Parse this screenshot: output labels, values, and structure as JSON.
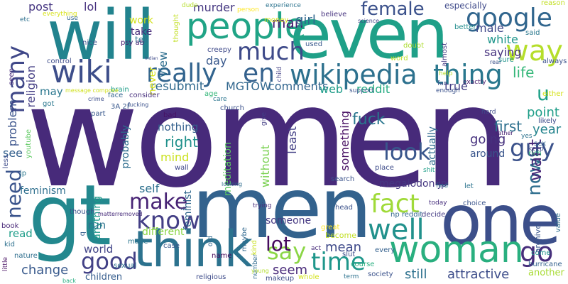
{
  "words": [
    {
      "text": "women",
      "color": "#472a7a"
    },
    {
      "text": "men",
      "color": "#33628d"
    },
    {
      "text": "gt",
      "color": "#23888e"
    },
    {
      "text": "will",
      "color": "#22838e"
    },
    {
      "text": "even",
      "color": "#1fa088"
    },
    {
      "text": "one",
      "color": "#3c4f8a"
    },
    {
      "text": "think",
      "color": "#2c728e"
    },
    {
      "text": "woman",
      "color": "#29af7f"
    },
    {
      "text": "wikipedia",
      "color": "#2d718e"
    },
    {
      "text": "people",
      "color": "#20a486"
    },
    {
      "text": "wiki",
      "color": "#3d4e8a"
    },
    {
      "text": "google",
      "color": "#31668e"
    },
    {
      "text": "really",
      "color": "#32648e"
    },
    {
      "text": "thing",
      "color": "#2a788e"
    },
    {
      "text": "en",
      "color": "#34618d"
    },
    {
      "text": "much",
      "color": "#3e4a89"
    },
    {
      "text": "way",
      "color": "#b5de2b"
    },
    {
      "text": "many",
      "color": "#3f4788"
    },
    {
      "text": "fact",
      "color": "#a0da39"
    },
    {
      "text": "well",
      "color": "#21918c"
    },
    {
      "text": "time",
      "color": "#1f978b"
    },
    {
      "text": "go",
      "color": "#472d7b"
    },
    {
      "text": "know",
      "color": "#433e85"
    },
    {
      "text": "make",
      "color": "#482475"
    },
    {
      "text": "guy",
      "color": "#3b528b"
    },
    {
      "text": "look",
      "color": "#39568c"
    },
    {
      "text": "say",
      "color": "#8bd646"
    },
    {
      "text": "need",
      "color": "#3a548c"
    },
    {
      "text": "good",
      "color": "#424186"
    },
    {
      "text": "female",
      "color": "#3b518b"
    },
    {
      "text": "now",
      "color": "#2e6e8e"
    },
    {
      "text": "want",
      "color": "#482878"
    },
    {
      "text": "u",
      "color": "#1fa188"
    },
    {
      "text": "point",
      "color": "#1f9e89"
    },
    {
      "text": "man",
      "color": "#481f70"
    },
    {
      "text": "girl",
      "color": "#31688e"
    },
    {
      "text": "murder",
      "color": "#453781"
    },
    {
      "text": "resubmit",
      "color": "#30698e"
    },
    {
      "text": "MGTOW",
      "color": "#31678e"
    },
    {
      "text": "comments",
      "color": "#32658e"
    },
    {
      "text": "life",
      "color": "#35b779"
    },
    {
      "text": "lot",
      "color": "#460b5e"
    },
    {
      "text": "fuck",
      "color": "#2a768e"
    },
    {
      "text": "first",
      "color": "#2d708e"
    },
    {
      "text": "year",
      "color": "#25848e"
    },
    {
      "text": "right",
      "color": "#21918c"
    },
    {
      "text": "going",
      "color": "#46317e"
    },
    {
      "text": "still",
      "color": "#2d718e"
    },
    {
      "text": "attractive",
      "color": "#3d4d8a"
    },
    {
      "text": "seem",
      "color": "#482979"
    },
    {
      "text": "mean",
      "color": "#3e4989"
    },
    {
      "text": "change",
      "color": "#38598c"
    },
    {
      "text": "children",
      "color": "#365d8d"
    },
    {
      "text": "post",
      "color": "#453581"
    },
    {
      "text": "lol",
      "color": "#46307e"
    },
    {
      "text": "day",
      "color": "#38588c"
    },
    {
      "text": "nothing",
      "color": "#34618d"
    },
    {
      "text": "true",
      "color": "#433e85"
    },
    {
      "text": "web",
      "color": "#1e9c89"
    },
    {
      "text": "reddit",
      "color": "#25ab82"
    },
    {
      "text": "view",
      "color": "#2e6e8e"
    },
    {
      "text": "never",
      "color": "#d8e219"
    },
    {
      "text": "work",
      "color": "#d2e21b"
    },
    {
      "text": "take",
      "color": "#472c7a"
    },
    {
      "text": "tell",
      "color": "#2c738e"
    },
    {
      "text": "white",
      "color": "#1f968b"
    },
    {
      "text": "saying",
      "color": "#46327e"
    },
    {
      "text": "male",
      "color": "#3f4889"
    },
    {
      "text": "religion",
      "color": "#433d84"
    },
    {
      "text": "problem",
      "color": "#3a538b"
    },
    {
      "text": "probably",
      "color": "#2e6d8e"
    },
    {
      "text": "anything",
      "color": "#1e9b8a"
    },
    {
      "text": "self",
      "color": "#2d708e"
    },
    {
      "text": "mind",
      "color": "#cae11f"
    },
    {
      "text": "feminism",
      "color": "#2e6f8e"
    },
    {
      "text": "see",
      "color": "#34608d"
    },
    {
      "text": "may",
      "color": "#2a778e"
    },
    {
      "text": "run",
      "color": "#2c728e"
    },
    {
      "text": "read",
      "color": "#1e9d89"
    },
    {
      "text": "world",
      "color": "#414487"
    },
    {
      "text": "different",
      "color": "#8bd646"
    },
    {
      "text": "someone",
      "color": "#453882"
    },
    {
      "text": "something",
      "color": "#471063"
    },
    {
      "text": "least",
      "color": "#423f85"
    },
    {
      "text": "without",
      "color": "#7ad151"
    },
    {
      "text": "meditation",
      "color": "#5ec962"
    },
    {
      "text": "megalodon jp",
      "color": "#453781"
    },
    {
      "text": "around",
      "color": "#39558c"
    },
    {
      "text": "actually",
      "color": "#2f6b8e"
    },
    {
      "text": "feminist",
      "color": "#31688e"
    },
    {
      "text": "everything",
      "color": "#d8e219"
    },
    {
      "text": "etc",
      "color": "#2d708e"
    },
    {
      "text": "use",
      "color": "#32658e"
    },
    {
      "text": "nice",
      "color": "#3b528b"
    },
    {
      "text": "psy ab",
      "color": "#482173"
    },
    {
      "text": "control",
      "color": "#3e4c8a"
    },
    {
      "text": "seen",
      "color": "#472a7a"
    },
    {
      "text": "thought",
      "color": "#c2df23"
    },
    {
      "text": "dude",
      "color": "#b5de2b"
    },
    {
      "text": "person",
      "color": "#fde725"
    },
    {
      "text": "experience",
      "color": "#2c738e"
    },
    {
      "text": "believe",
      "color": "#46337f"
    },
    {
      "text": "especially",
      "color": "#3e4989"
    },
    {
      "text": "reason",
      "color": "#c2df23"
    },
    {
      "text": "better",
      "color": "#228d8d"
    },
    {
      "text": "said",
      "color": "#2a788e"
    },
    {
      "text": "sure",
      "color": "#1f948c"
    },
    {
      "text": "always",
      "color": "#3b518b"
    },
    {
      "text": "likely",
      "color": "#3d4d8a"
    },
    {
      "text": "sex",
      "color": "#34618d"
    },
    {
      "text": "rich",
      "color": "#32b67a"
    },
    {
      "text": "keep",
      "color": "#3d4e8a"
    },
    {
      "text": "hard",
      "color": "#3e4a89"
    },
    {
      "text": "rather",
      "color": "#482173"
    },
    {
      "text": "yes",
      "color": "#2c728e"
    },
    {
      "text": "either",
      "color": "#d5e21a"
    },
    {
      "text": "exactly",
      "color": "#48196b"
    },
    {
      "text": "enough",
      "color": "#3b528b"
    },
    {
      "text": "far",
      "color": "#3a548c"
    },
    {
      "text": "help",
      "color": "#b5de2b"
    },
    {
      "text": "almost",
      "color": "#443b84"
    },
    {
      "text": "doubt",
      "color": "#addc30"
    },
    {
      "text": "used",
      "color": "#38598c"
    },
    {
      "text": "word",
      "color": "#bddf26"
    },
    {
      "text": "real",
      "color": "#3b528b"
    },
    {
      "text": "science",
      "color": "#3f4788"
    },
    {
      "text": "creepy",
      "color": "#3e4989"
    },
    {
      "text": "money",
      "color": "#d5e21a"
    },
    {
      "text": "child",
      "color": "#424186"
    },
    {
      "text": "support",
      "color": "#3a548c"
    },
    {
      "text": "care",
      "color": "#2b758e"
    },
    {
      "text": "face",
      "color": "#32658e"
    },
    {
      "text": "brain",
      "color": "#1f9e89"
    },
    {
      "text": "consider",
      "color": "#472f7d"
    },
    {
      "text": "crime",
      "color": "#3d4e8a"
    },
    {
      "text": "fucking",
      "color": "#3b518b"
    },
    {
      "text": "age",
      "color": "#35b779"
    },
    {
      "text": "church",
      "color": "#3b518b"
    },
    {
      "text": "bad",
      "color": "#471164"
    },
    {
      "text": "give",
      "color": "#433e85"
    },
    {
      "text": "part",
      "color": "#38588c"
    },
    {
      "text": "got",
      "color": "#2a778e"
    },
    {
      "text": "3A 2F",
      "color": "#38588c"
    },
    {
      "text": "message compose",
      "color": "#d0e11c"
    },
    {
      "text": "Indian",
      "color": "#3e4989"
    },
    {
      "text": "youtube",
      "color": "#5ec962"
    },
    {
      "text": "less",
      "color": "#3e4c8a"
    },
    {
      "text": "jp",
      "color": "#2a788e"
    },
    {
      "text": "though",
      "color": "#3b528b"
    },
    {
      "text": "book",
      "color": "#482878"
    },
    {
      "text": "kid",
      "color": "#2d708e"
    },
    {
      "text": "nature",
      "color": "#2e6e8e"
    },
    {
      "text": "little",
      "color": "#471063"
    },
    {
      "text": "back",
      "color": "#26ad81"
    },
    {
      "text": "wall",
      "color": "#3f4889"
    },
    {
      "text": "looking",
      "color": "#2f6c8e"
    },
    {
      "text": "q",
      "color": "#34608d"
    },
    {
      "text": "made",
      "color": "#2a768e"
    },
    {
      "text": "case",
      "color": "#38588c"
    },
    {
      "text": "sexual",
      "color": "#2d708e"
    },
    {
      "text": "matterremoved",
      "color": "#472c7a"
    },
    {
      "text": "religious",
      "color": "#3e4c8a"
    },
    {
      "text": "old",
      "color": "#31688e"
    },
    {
      "text": "name",
      "color": "#46075a"
    },
    {
      "text": "trying",
      "color": "#472d7b"
    },
    {
      "text": "maybe",
      "color": "#31688e"
    },
    {
      "text": "kind",
      "color": "#c8e020"
    },
    {
      "text": "number",
      "color": "#2f6b8e"
    },
    {
      "text": "young",
      "color": "#b2dd2d"
    },
    {
      "text": "search",
      "color": "#3b528b"
    },
    {
      "text": "place",
      "color": "#3e4c8a"
    },
    {
      "text": "head",
      "color": "#3b528b"
    },
    {
      "text": "great",
      "color": "#fde725"
    },
    {
      "text": "become",
      "color": "#c2df23"
    },
    {
      "text": "act",
      "color": "#472d7b"
    },
    {
      "text": "slut",
      "color": "#3d4e8a"
    },
    {
      "text": "every",
      "color": "#34618d"
    },
    {
      "text": "course",
      "color": "#29af7f"
    },
    {
      "text": "whole",
      "color": "#d2e21b"
    },
    {
      "text": "term",
      "color": "#2c728e"
    },
    {
      "text": "makeup",
      "color": "#3e4c8a"
    },
    {
      "text": "society",
      "color": "#3b528b"
    },
    {
      "text": "np reddit",
      "color": "#32658e"
    },
    {
      "text": "decide",
      "color": "#443b84"
    },
    {
      "text": "choice",
      "color": "#3a548c"
    },
    {
      "text": "find",
      "color": "#2c738e"
    },
    {
      "text": "shit",
      "color": "#1f9e89"
    },
    {
      "text": "today",
      "color": "#472f7d"
    },
    {
      "text": "let",
      "color": "#2c738e"
    },
    {
      "text": "come",
      "color": "#1f958b"
    },
    {
      "text": "hurricane",
      "color": "#34618d"
    },
    {
      "text": "archive",
      "color": "#39568c"
    },
    {
      "text": "value",
      "color": "#2e6e8e"
    },
    {
      "text": "another",
      "color": "#a8db34"
    },
    {
      "text": "via",
      "color": "#31688e"
    }
  ]
}
